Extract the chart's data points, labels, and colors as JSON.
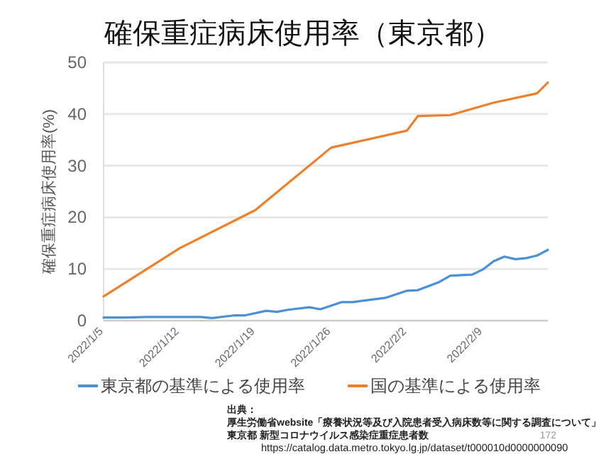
{
  "chart_data": {
    "type": "line",
    "title": "確保重症病床使用率（東京都）",
    "ylabel": "確保重症病床使用率(%)",
    "xlim": [
      "2022-01-05",
      "2022-02-15"
    ],
    "xticks": [
      {
        "value": "2022-01-05",
        "label": "2022/1/5"
      },
      {
        "value": "2022-01-12",
        "label": "2022/1/12"
      },
      {
        "value": "2022-01-19",
        "label": "2022/1/19"
      },
      {
        "value": "2022-01-26",
        "label": "2022/1/26"
      },
      {
        "value": "2022-02-02",
        "label": "2022/2/2"
      },
      {
        "value": "2022-02-09",
        "label": "2022/2/9"
      }
    ],
    "ylim": [
      0,
      50
    ],
    "yticks": [
      0,
      10,
      20,
      30,
      40,
      50
    ],
    "grid": "y",
    "legend": "bottom",
    "marker": "none",
    "line_style": "solid",
    "series": [
      {
        "name": "東京都の基準による使用率",
        "color": "#4a90d9",
        "x": [
          "2022-01-05",
          "2022-01-07",
          "2022-01-09",
          "2022-01-14",
          "2022-01-15",
          "2022-01-17",
          "2022-01-18",
          "2022-01-20",
          "2022-01-21",
          "2022-01-22",
          "2022-01-24",
          "2022-01-25",
          "2022-01-27",
          "2022-01-28",
          "2022-01-31",
          "2022-02-02",
          "2022-02-03",
          "2022-02-05",
          "2022-02-06",
          "2022-02-08",
          "2022-02-09",
          "2022-02-10",
          "2022-02-11",
          "2022-02-12",
          "2022-02-13",
          "2022-02-14",
          "2022-02-15"
        ],
        "values": [
          0.6,
          0.6,
          0.7,
          0.7,
          0.5,
          1.0,
          1.0,
          1.9,
          1.7,
          2.1,
          2.6,
          2.2,
          3.6,
          3.6,
          4.4,
          5.8,
          5.9,
          7.5,
          8.7,
          8.9,
          9.9,
          11.5,
          12.4,
          11.9,
          12.1,
          12.6,
          13.7
        ]
      },
      {
        "name": "国の基準による使用率",
        "color": "#f07f2a",
        "x": [
          "2022-01-05",
          "2022-01-12",
          "2022-01-19",
          "2022-01-26",
          "2022-02-02",
          "2022-02-03",
          "2022-02-06",
          "2022-02-10",
          "2022-02-14",
          "2022-02-15"
        ],
        "values": [
          4.7,
          14.0,
          21.4,
          33.5,
          36.8,
          39.6,
          39.8,
          42.2,
          44.0,
          46.1
        ]
      }
    ],
    "annotations": [
      "出典：",
      "厚生労働省website「療養状況等及び入院患者受入病床数等に関する調査について」",
      "東京都 新型コロナウイルス感染症重症患者数",
      "https://catalog.data.metro.tokyo.lg.jp/dataset/t000010d0000000090",
      "172"
    ]
  }
}
